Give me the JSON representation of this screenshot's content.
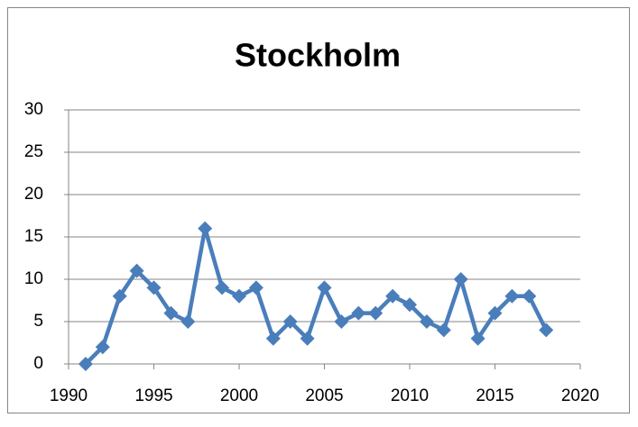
{
  "chart_data": {
    "type": "line",
    "title": "Stockholm",
    "x": [
      1991,
      1992,
      1993,
      1994,
      1995,
      1996,
      1997,
      1998,
      1999,
      2000,
      2001,
      2002,
      2003,
      2004,
      2005,
      2006,
      2007,
      2008,
      2009,
      2010,
      2011,
      2012,
      2013,
      2014,
      2015,
      2016,
      2017,
      2018
    ],
    "values": [
      0,
      2,
      8,
      11,
      9,
      6,
      5,
      16,
      9,
      8,
      9,
      3,
      5,
      3,
      9,
      5,
      6,
      6,
      8,
      7,
      5,
      4,
      10,
      3,
      6,
      8,
      8,
      4
    ],
    "color": "#4a7ebb",
    "xlim": [
      1990,
      2020
    ],
    "xticks": [
      1990,
      1995,
      2000,
      2005,
      2010,
      2015,
      2020
    ],
    "ylim": [
      0,
      30
    ],
    "yticks": [
      0,
      5,
      10,
      15,
      20,
      25,
      30
    ],
    "grid": true
  }
}
